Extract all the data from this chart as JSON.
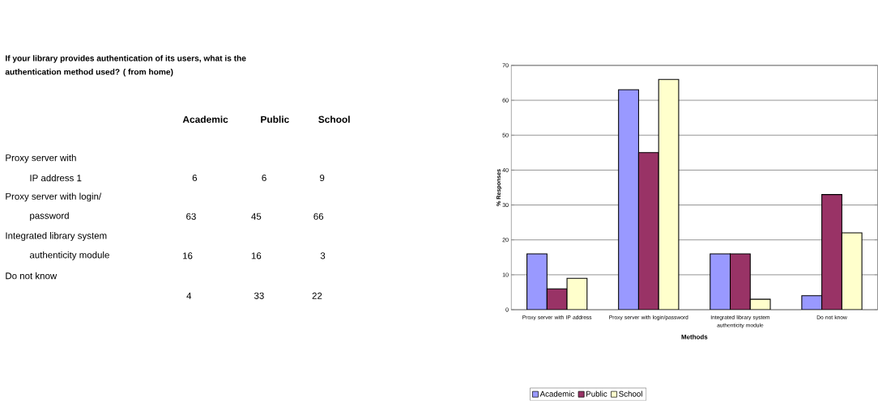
{
  "chart_data": [
    {
      "type": "other",
      "title": "If your library provides authentication of its users, what is the authentication method used? ( from home)",
      "annotations": [
        "Academic",
        "Public",
        "School",
        "Proxy server with",
        "IP address 1",
        "6",
        "6",
        "9",
        "Proxy server with login/",
        "password",
        "63",
        "45",
        "66",
        "Integrated library system",
        "authenticity module",
        "16",
        "16",
        "3",
        "Do not know",
        "4",
        "33",
        "22"
      ]
    },
    {
      "type": "bar",
      "xlabel": "Methods",
      "ylabel": "% Responses",
      "categories": [
        "Proxy server with IP address",
        "Proxy server with login/password",
        "Integrated library system authenticity module",
        "Do not know"
      ],
      "series": [
        {
          "name": "Academic",
          "color": "#9999ff",
          "values": [
            16,
            63,
            16,
            4
          ]
        },
        {
          "name": "Public",
          "color": "#993366",
          "values": [
            6,
            45,
            16,
            33
          ]
        },
        {
          "name": "School",
          "color": "#ffffcc",
          "values": [
            9,
            66,
            3,
            22
          ]
        }
      ],
      "ylim": [
        0,
        70
      ],
      "yticks": [
        0,
        10,
        20,
        30,
        40,
        50,
        60,
        70
      ],
      "grid": "y",
      "legend": "bottom"
    }
  ]
}
